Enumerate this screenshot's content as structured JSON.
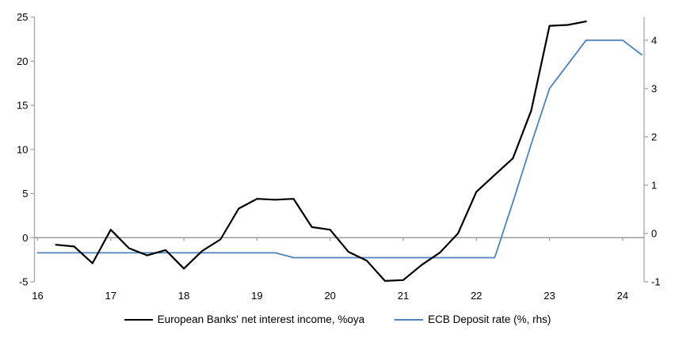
{
  "chart_data": {
    "type": "line",
    "x_axis": {
      "ticks": [
        16,
        17,
        18,
        19,
        20,
        21,
        22,
        23,
        24
      ],
      "tick_labels": [
        "16",
        "17",
        "18",
        "19",
        "20",
        "21",
        "22",
        "23",
        "24"
      ],
      "range": [
        15.96,
        24.29
      ]
    },
    "left_axis": {
      "ticks": [
        25,
        20,
        15,
        10,
        5,
        0,
        -5
      ],
      "range": [
        -5,
        25
      ]
    },
    "right_axis": {
      "ticks": [
        4,
        3,
        2,
        1,
        0,
        -1
      ],
      "range": [
        -1,
        4.48
      ]
    },
    "grid": "zero-line-only",
    "legend_position": "bottom-center",
    "series": [
      {
        "name": "European Banks' net interest income, %oya",
        "axis": "left",
        "color": "#000000",
        "stroke_width": 2.2,
        "x": [
          16.25,
          16.5,
          16.75,
          17.0,
          17.25,
          17.5,
          17.75,
          18.0,
          18.25,
          18.5,
          18.75,
          19.0,
          19.25,
          19.5,
          19.75,
          20.0,
          20.25,
          20.5,
          20.75,
          21.0,
          21.25,
          21.5,
          21.75,
          22.0,
          22.25,
          22.5,
          22.75,
          23.0,
          23.25,
          23.5
        ],
        "values": [
          -0.8,
          -1.0,
          -2.9,
          0.9,
          -1.2,
          -2.0,
          -1.4,
          -3.5,
          -1.5,
          -0.2,
          3.3,
          4.4,
          4.3,
          4.4,
          1.2,
          0.9,
          -1.6,
          -2.6,
          -4.9,
          -4.8,
          -3.1,
          -1.7,
          0.5,
          5.2,
          7.1,
          9.0,
          14.4,
          24.0,
          24.1,
          24.5
        ]
      },
      {
        "name": "ECB Deposit rate (%, rhs)",
        "axis": "right",
        "color": "#4E81BD",
        "stroke_width": 1.8,
        "x": [
          16.0,
          19.25,
          19.5,
          22.25,
          22.5,
          22.75,
          23.0,
          23.25,
          23.5,
          24.0,
          24.26
        ],
        "values": [
          -0.4,
          -0.4,
          -0.5,
          -0.5,
          0.65,
          1.85,
          3.0,
          3.5,
          4.0,
          4.0,
          3.7
        ]
      }
    ]
  },
  "colors": {
    "axis_line": "#A6A6A6",
    "zero_line": "#9C9C9C",
    "tick_text": "#000000",
    "background": "#FFFFFF"
  }
}
